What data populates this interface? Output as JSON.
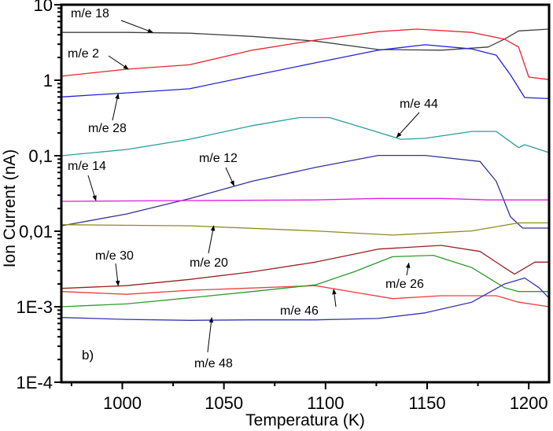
{
  "chart_data": {
    "type": "line",
    "title": "",
    "panel_label": "b)",
    "xlabel": "Temperatura (K)",
    "ylabel": "Ion Current (nA)",
    "xlim": [
      970,
      1210
    ],
    "ylim": [
      0.0001,
      10
    ],
    "yscale": "log",
    "grid": false,
    "x_ticks": [
      {
        "value": 1000,
        "label": "1000"
      },
      {
        "value": 1050,
        "label": "1050"
      },
      {
        "value": 1100,
        "label": "1100"
      },
      {
        "value": 1150,
        "label": "1150"
      },
      {
        "value": 1200,
        "label": "1200"
      }
    ],
    "x_minor_ticks": [
      975,
      1025,
      1075,
      1125,
      1175
    ],
    "y_ticks": [
      {
        "value": 10,
        "label": "10"
      },
      {
        "value": 1,
        "label": "1"
      },
      {
        "value": 0.1,
        "label": "0,1"
      },
      {
        "value": 0.01,
        "label": "0,01"
      },
      {
        "value": 0.001,
        "label": "1E-3"
      },
      {
        "value": 0.0001,
        "label": "1E-4"
      }
    ],
    "series": [
      {
        "name": "m/e 18",
        "color": "#404040",
        "x": [
          970,
          1002,
          1033,
          1064,
          1095,
          1126,
          1157,
          1180,
          1188,
          1195,
          1210
        ],
        "y": [
          4.3,
          4.3,
          4.2,
          3.8,
          3.3,
          2.55,
          2.5,
          2.75,
          3.5,
          4.5,
          4.75
        ]
      },
      {
        "name": "m/e 2",
        "color": "#e8232b",
        "x": [
          970,
          1002,
          1033,
          1064,
          1095,
          1126,
          1145,
          1172,
          1188,
          1195,
          1200,
          1210
        ],
        "y": [
          1.13,
          1.4,
          1.6,
          2.5,
          3.4,
          4.4,
          4.75,
          4.3,
          3.5,
          2.75,
          1.1,
          1.02
        ]
      },
      {
        "name": "m/e 28",
        "color": "#2323d8",
        "x": [
          970,
          1002,
          1033,
          1064,
          1095,
          1126,
          1149,
          1172,
          1184,
          1191,
          1198,
          1210
        ],
        "y": [
          0.6,
          0.68,
          0.77,
          1.15,
          1.7,
          2.5,
          2.95,
          2.6,
          2.15,
          1.18,
          0.59,
          0.57
        ]
      },
      {
        "name": "m/e 44",
        "color": "#2a9d9d",
        "x": [
          970,
          1002,
          1033,
          1064,
          1087,
          1102,
          1122,
          1137,
          1149,
          1172,
          1184,
          1195,
          1198,
          1210
        ],
        "y": [
          0.1,
          0.121,
          0.165,
          0.25,
          0.32,
          0.32,
          0.22,
          0.165,
          0.17,
          0.21,
          0.21,
          0.128,
          0.14,
          0.11
        ]
      },
      {
        "name": "m/e 12",
        "color": "#33339a",
        "x": [
          970,
          1002,
          1033,
          1064,
          1095,
          1126,
          1149,
          1176,
          1184,
          1191,
          1197,
          1210
        ],
        "y": [
          0.0118,
          0.0169,
          0.027,
          0.046,
          0.07,
          0.101,
          0.101,
          0.084,
          0.046,
          0.0156,
          0.011,
          0.011
        ]
      },
      {
        "name": "m/e 14",
        "color": "#e020e0",
        "x": [
          970,
          1033,
          1095,
          1126,
          1157,
          1180,
          1210
        ],
        "y": [
          0.0249,
          0.0255,
          0.026,
          0.0272,
          0.0272,
          0.026,
          0.026
        ]
      },
      {
        "name": "m/e 20",
        "color": "#8c8c20",
        "x": [
          970,
          1033,
          1095,
          1133,
          1172,
          1195,
          1210
        ],
        "y": [
          0.0122,
          0.0118,
          0.0101,
          0.0089,
          0.0101,
          0.0129,
          0.0129
        ]
      },
      {
        "name": "m/e 30",
        "color": "#9a2020",
        "x": [
          970,
          1002,
          1033,
          1064,
          1095,
          1126,
          1157,
          1176,
          1188,
          1193,
          1203,
          1210
        ],
        "y": [
          0.00175,
          0.0019,
          0.0023,
          0.0029,
          0.0039,
          0.0058,
          0.0065,
          0.0054,
          0.0033,
          0.0027,
          0.0039,
          0.0039
        ]
      },
      {
        "name": "m/e 46",
        "color": "#f03c3c",
        "x": [
          970,
          1002,
          1033,
          1064,
          1095,
          1114,
          1133,
          1157,
          1184,
          1195,
          1210
        ],
        "y": [
          0.00159,
          0.00146,
          0.00165,
          0.00177,
          0.0019,
          0.00156,
          0.00128,
          0.0014,
          0.0014,
          0.00115,
          0.001
        ]
      },
      {
        "name": "m/e 26",
        "color": "#2e9a2e",
        "x": [
          970,
          1002,
          1033,
          1064,
          1095,
          1114,
          1133,
          1153,
          1172,
          1188,
          1195,
          1210
        ],
        "y": [
          0.001,
          0.00109,
          0.00131,
          0.00159,
          0.00195,
          0.0029,
          0.0046,
          0.0048,
          0.0033,
          0.00179,
          0.00159,
          0.00159
        ]
      },
      {
        "name": "m/e 48",
        "color": "#3434b4",
        "x": [
          970,
          1002,
          1033,
          1064,
          1095,
          1126,
          1149,
          1172,
          1188,
          1198,
          1205,
          1210
        ],
        "y": [
          0.00072,
          0.00068,
          0.00066,
          0.00067,
          0.00067,
          0.0007,
          0.00083,
          0.00115,
          0.002,
          0.0024,
          0.00179,
          0.0013
        ]
      }
    ],
    "annotations": [
      {
        "text": "m/e 18",
        "series": "m/e 18",
        "arrow_to": [
          1015,
          4.3
        ]
      },
      {
        "text": "m/e 2",
        "series": "m/e 2",
        "arrow_to": [
          1003,
          1.4
        ]
      },
      {
        "text": "m/e 28",
        "series": "m/e 28",
        "arrow_to": [
          998,
          0.66
        ]
      },
      {
        "text": "m/e 44",
        "series": "m/e 44",
        "arrow_to": [
          1135,
          0.175
        ]
      },
      {
        "text": "m/e 14",
        "series": "m/e 14",
        "arrow_to": [
          987,
          0.0255
        ]
      },
      {
        "text": "m/e 12",
        "series": "m/e 12",
        "arrow_to": [
          1055,
          0.04
        ]
      },
      {
        "text": "m/e 20",
        "series": "m/e 20",
        "arrow_to": [
          1045,
          0.0118
        ]
      },
      {
        "text": "m/e 30",
        "series": "m/e 30",
        "arrow_to": [
          998,
          0.0019
        ]
      },
      {
        "text": "m/e 26",
        "series": "m/e 26",
        "arrow_to": [
          1141,
          0.0038
        ]
      },
      {
        "text": "m/e 46",
        "series": "m/e 46",
        "arrow_to": [
          1104,
          0.0017
        ]
      },
      {
        "text": "m/e 48",
        "series": "m/e 48",
        "arrow_to": [
          1044,
          0.00072
        ]
      }
    ],
    "legend": "none"
  }
}
